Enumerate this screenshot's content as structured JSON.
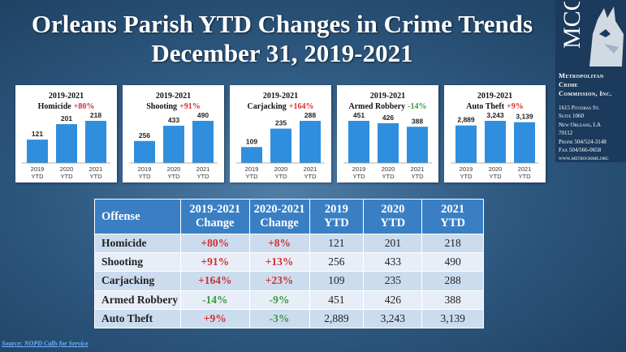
{
  "title": {
    "line1": "Orleans Parish YTD Changes in Crime Trends",
    "line2": "December 31, 2019-2021"
  },
  "brand": {
    "logo_text": "MCC",
    "name_lines": [
      "Metropolitan",
      "Crime",
      "Commission, Inc."
    ],
    "address_lines": [
      "1615 Poydras St.",
      "Suite 1060",
      "New Orleans, LA",
      "70112",
      "Phone 504/524-3148",
      "Fax 504/566-0658",
      "www.metrocrime.org"
    ]
  },
  "colors": {
    "bar": "#2f8fde",
    "increase": "#d32f2f",
    "decrease": "#3a9a3a",
    "header": "#3a7fc4"
  },
  "chart_data": [
    {
      "type": "bar",
      "title": "2019-2021",
      "subtitle_name": "Homicide",
      "change": "+80%",
      "direction": "up",
      "categories": [
        "2019 YTD",
        "2020 YTD",
        "2021 YTD"
      ],
      "values": [
        121,
        201,
        218
      ],
      "labels": [
        "121",
        "201",
        "218"
      ]
    },
    {
      "type": "bar",
      "title": "2019-2021",
      "subtitle_name": "Shooting",
      "change": "+91%",
      "direction": "up",
      "categories": [
        "2019 YTD",
        "2020 YTD",
        "2021 YTD"
      ],
      "values": [
        256,
        433,
        490
      ],
      "labels": [
        "256",
        "433",
        "490"
      ]
    },
    {
      "type": "bar",
      "title": "2019-2021",
      "subtitle_name": "Carjacking",
      "change": "+164%",
      "direction": "up",
      "categories": [
        "2019 YTD",
        "2020 YTD",
        "2021 YTD"
      ],
      "values": [
        109,
        235,
        288
      ],
      "labels": [
        "109",
        "235",
        "288"
      ]
    },
    {
      "type": "bar",
      "title": "2019-2021",
      "subtitle_name": "Armed Robbery",
      "change": "-14%",
      "direction": "down",
      "categories": [
        "2019 YTD",
        "2020 YTD",
        "2021 YTD"
      ],
      "values": [
        451,
        426,
        388
      ],
      "labels": [
        "451",
        "426",
        "388"
      ]
    },
    {
      "type": "bar",
      "title": "2019-2021",
      "subtitle_name": "Auto Theft",
      "change": "+9%",
      "direction": "up",
      "categories": [
        "2019 YTD",
        "2020 YTD",
        "2021 YTD"
      ],
      "values": [
        2889,
        3243,
        3139
      ],
      "labels": [
        "2,889",
        "3,243",
        "3,139"
      ]
    }
  ],
  "table": {
    "headers": [
      {
        "line1": "Offense",
        "line2": ""
      },
      {
        "line1": "2019-2021",
        "line2": "Change"
      },
      {
        "line1": "2020-2021",
        "line2": "Change"
      },
      {
        "line1": "2019",
        "line2": "YTD"
      },
      {
        "line1": "2020",
        "line2": "YTD"
      },
      {
        "line1": "2021",
        "line2": "YTD"
      }
    ],
    "rows": [
      {
        "offense": "Homicide",
        "change_19_21": "+80%",
        "dir_19_21": "pos",
        "change_20_21": "+8%",
        "dir_20_21": "pos",
        "y2019": "121",
        "y2020": "201",
        "y2021": "218"
      },
      {
        "offense": "Shooting",
        "change_19_21": "+91%",
        "dir_19_21": "pos",
        "change_20_21": "+13%",
        "dir_20_21": "pos",
        "y2019": "256",
        "y2020": "433",
        "y2021": "490"
      },
      {
        "offense": "Carjacking",
        "change_19_21": "+164%",
        "dir_19_21": "pos",
        "change_20_21": "+23%",
        "dir_20_21": "pos",
        "y2019": "109",
        "y2020": "235",
        "y2021": "288"
      },
      {
        "offense": "Armed Robbery",
        "change_19_21": "-14%",
        "dir_19_21": "neg",
        "change_20_21": "-9%",
        "dir_20_21": "neg",
        "y2019": "451",
        "y2020": "426",
        "y2021": "388"
      },
      {
        "offense": "Auto Theft",
        "change_19_21": "+9%",
        "dir_19_21": "pos",
        "change_20_21": "-3%",
        "dir_20_21": "neg",
        "y2019": "2,889",
        "y2020": "3,243",
        "y2021": "3,139"
      }
    ]
  },
  "source": "Source: NOPD Calls for Service"
}
